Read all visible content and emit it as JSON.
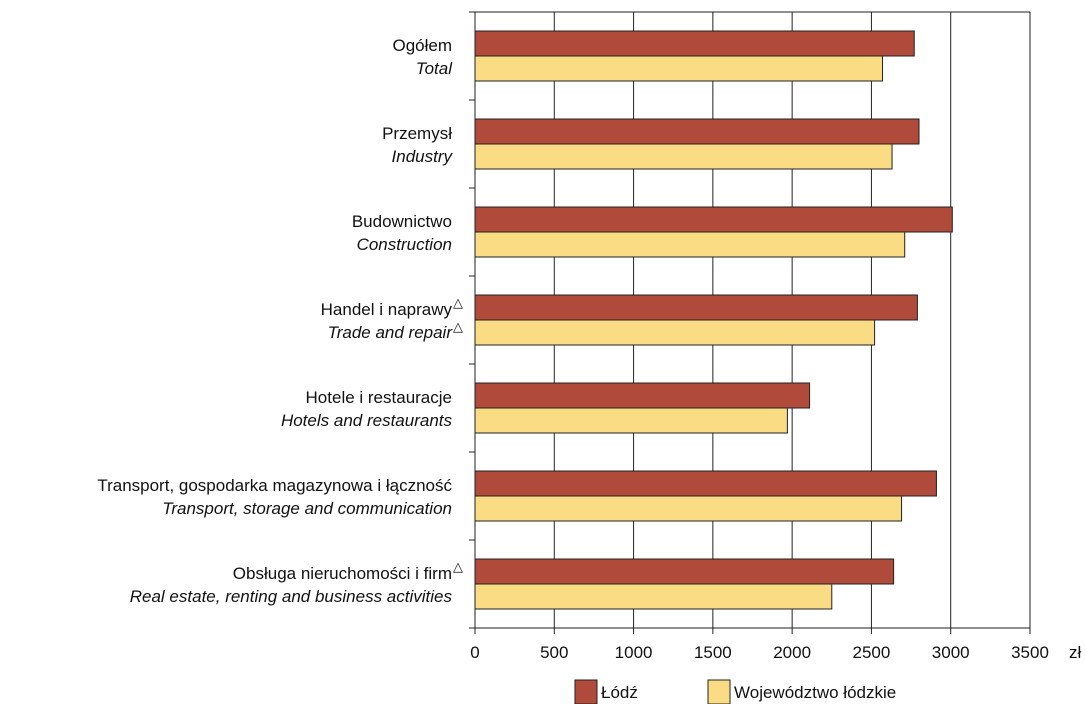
{
  "chart_data": {
    "type": "bar",
    "orientation": "horizontal",
    "categories": [
      {
        "pl": "Ogółem",
        "en": "Total",
        "marker": ""
      },
      {
        "pl": "Przemysł",
        "en": "Industry",
        "marker": ""
      },
      {
        "pl": "Budownictwo",
        "en": "Construction",
        "marker": ""
      },
      {
        "pl": "Handel i naprawy",
        "en": "Trade and repair",
        "marker": "△"
      },
      {
        "pl": "Hotele i restauracje",
        "en": "Hotels and restaurants",
        "marker": ""
      },
      {
        "pl": "Transport, gospodarka magazynowa i łączność",
        "en": "Transport, storage and communication",
        "marker": ""
      },
      {
        "pl": "Obsługa nieruchomości i firm",
        "en": "Real estate, renting and business activities",
        "marker": "△",
        "marker_pl_only": true
      }
    ],
    "series": [
      {
        "name": "Łódź",
        "color": "#b04a3a",
        "values": [
          2770,
          2800,
          3010,
          2790,
          2110,
          2910,
          2640
        ]
      },
      {
        "name": "Województwo łódzkie",
        "color": "#fadc85",
        "values": [
          2570,
          2630,
          2710,
          2520,
          1970,
          2690,
          2250
        ]
      }
    ],
    "xlim": [
      0,
      3500
    ],
    "xticks": [
      0,
      500,
      1000,
      1500,
      2000,
      2500,
      3000,
      3500
    ],
    "xunit": "zł",
    "grid": true,
    "legend": "bottom"
  }
}
